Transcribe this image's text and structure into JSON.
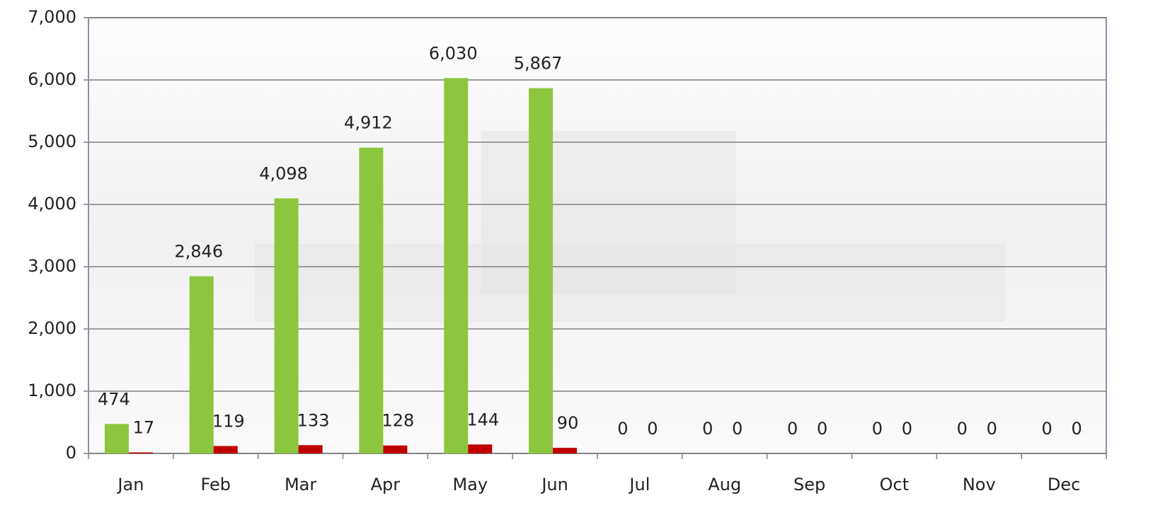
{
  "chart_data": {
    "type": "bar",
    "categories": [
      "Jan",
      "Feb",
      "Mar",
      "Apr",
      "May",
      "Jun",
      "Jul",
      "Aug",
      "Sep",
      "Oct",
      "Nov",
      "Dec"
    ],
    "series": [
      {
        "color": "#8cc63f",
        "values": [
          474,
          2846,
          4098,
          4912,
          6030,
          5867,
          0,
          0,
          0,
          0,
          0,
          0
        ],
        "value_labels": [
          "474",
          "2,846",
          "4,098",
          "4,912",
          "6,030",
          "5,867",
          "0",
          "0",
          "0",
          "0",
          "0",
          "0"
        ]
      },
      {
        "color": "#c00000",
        "values": [
          17,
          119,
          133,
          128,
          144,
          90,
          0,
          0,
          0,
          0,
          0,
          0
        ]
      }
    ],
    "ylim": [
      0,
      7000
    ],
    "yticks": [
      0,
      {
        "value": 1000,
        "label": "1,000"
      },
      {
        "value": 2000,
        "label": "2,000"
      },
      {
        "value": 3000,
        "label": "3,000"
      },
      {
        "value": 4000,
        "label": "4,000"
      },
      {
        "value": 5000,
        "label": "5,000"
      },
      {
        "value": 6000,
        "label": "6,000"
      },
      {
        "value": 7000,
        "label": "7,000"
      }
    ],
    "grid": true
  }
}
